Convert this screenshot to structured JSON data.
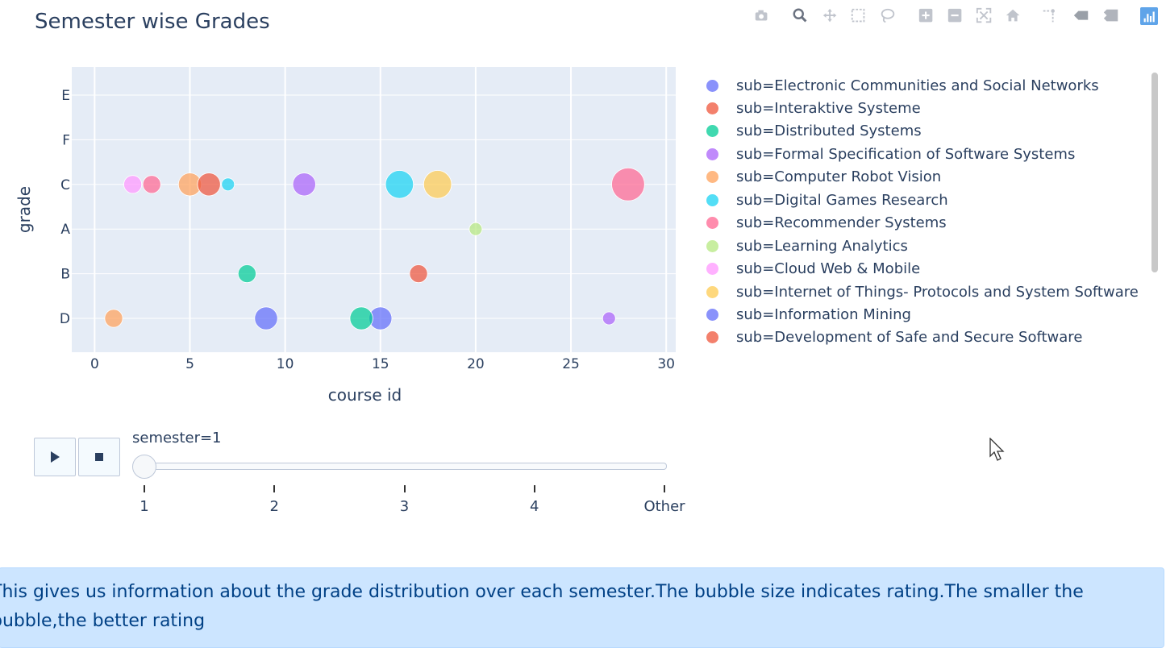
{
  "title": "Semester wise Grades",
  "modebar": {
    "buttons": [
      "camera-icon",
      "zoom-icon",
      "pan-icon",
      "box-select-icon",
      "lasso-select-icon",
      "zoom-in-icon",
      "zoom-out-icon",
      "autoscale-icon",
      "reset-axes-icon",
      "spike-lines-icon",
      "hover-closest-icon",
      "hover-compare-icon",
      "plotly-logo-icon"
    ]
  },
  "chart_data": {
    "type": "scatter",
    "xlabel": "course id",
    "ylabel": "grade",
    "xlim": [
      -1.2,
      30.5
    ],
    "x_ticks": [
      0,
      5,
      10,
      15,
      20,
      25,
      30
    ],
    "y_categories": [
      "E",
      "F",
      "C",
      "A",
      "B",
      "D"
    ],
    "grid": true,
    "legend_placement": "right",
    "bubble_size_meaning": "rating",
    "series": [
      {
        "name": "sub=Electronic Communities and Social Networks",
        "color": "#636efa",
        "points": []
      },
      {
        "name": "sub=Interaktive Systeme",
        "color": "#ef553b",
        "points": []
      },
      {
        "name": "sub=Distributed Systems",
        "color": "#00cc96",
        "points": []
      },
      {
        "name": "sub=Formal Specification of Software Systems",
        "color": "#ab63fa",
        "points": []
      },
      {
        "name": "sub=Computer Robot Vision",
        "color": "#ffa15a",
        "points": [
          {
            "x": 1,
            "y": "D",
            "size": 2
          },
          {
            "x": 5,
            "y": "C",
            "size": 3
          }
        ]
      },
      {
        "name": "sub=Digital Games Research",
        "color": "#19d3f3",
        "points": [
          {
            "x": 7,
            "y": "C",
            "size": 1
          },
          {
            "x": 16,
            "y": "C",
            "size": 4
          }
        ]
      },
      {
        "name": "sub=Recommender Systems",
        "color": "#ff6692",
        "points": [
          {
            "x": 3,
            "y": "C",
            "size": 2
          },
          {
            "x": 28,
            "y": "C",
            "size": 5
          }
        ]
      },
      {
        "name": "sub=Learning Analytics",
        "color": "#b6e880",
        "points": [
          {
            "x": 20,
            "y": "A",
            "size": 1
          }
        ]
      },
      {
        "name": "sub=Cloud Web & Mobile",
        "color": "#ff97ff",
        "points": [
          {
            "x": 2,
            "y": "C",
            "size": 2
          }
        ]
      },
      {
        "name": "sub=Internet of Things- Protocols and System Software",
        "color": "#fecb52",
        "points": [
          {
            "x": 18,
            "y": "C",
            "size": 4
          }
        ]
      },
      {
        "name": "sub=Information Mining",
        "color": "#636efa",
        "points": [
          {
            "x": 9,
            "y": "D",
            "size": 3
          },
          {
            "x": 15,
            "y": "D",
            "size": 3
          }
        ]
      },
      {
        "name": "sub=Development of Safe and Secure Software",
        "color": "#ef553b",
        "points": [
          {
            "x": 6,
            "y": "C",
            "size": 3
          },
          {
            "x": 17,
            "y": "B",
            "size": 2
          }
        ]
      },
      {
        "name": "",
        "color": "#00cc96",
        "points": [
          {
            "x": 8,
            "y": "B",
            "size": 2
          },
          {
            "x": 14,
            "y": "D",
            "size": 3
          }
        ]
      },
      {
        "name": "",
        "color": "#ab63fa",
        "points": [
          {
            "x": 11,
            "y": "C",
            "size": 3
          },
          {
            "x": 27,
            "y": "D",
            "size": 1
          }
        ]
      }
    ]
  },
  "slider": {
    "current_label": "semester=1",
    "steps": [
      "1",
      "2",
      "3",
      "4",
      "Other"
    ],
    "selected_index": 0,
    "play_icon": "play-icon",
    "stop_icon": "stop-icon"
  },
  "note": "This gives us information about the grade distribution over each semester.The bubble size indicates rating.The smaller the bubble,the better rating"
}
